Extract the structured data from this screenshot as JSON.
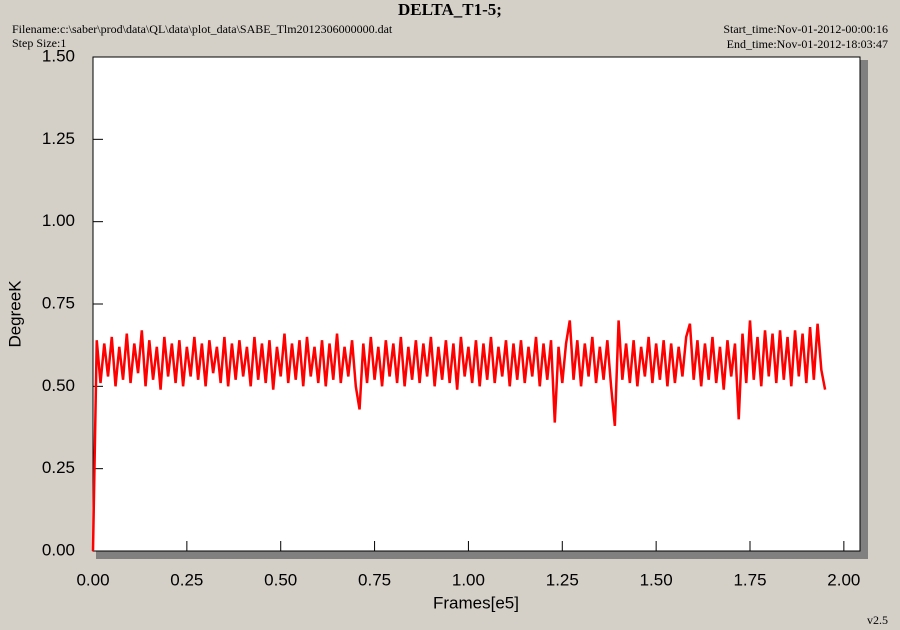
{
  "chart_data": {
    "type": "line",
    "title": "DELTA_T1-5;",
    "filename": "Filename:c:\\saber\\prod\\data\\QL\\data\\plot_data\\SABE_Tlm2012306000000.dat",
    "step_size": "Step Size:1",
    "start_time": "Start_time:Nov-01-2012-00:00:16",
    "end_time": "End_time:Nov-01-2012-18:03:47",
    "version": "v2.5",
    "xlabel": "Frames[e5]",
    "ylabel": "DegreeK",
    "xlim": [
      0,
      2.043
    ],
    "ylim": [
      0,
      1.5
    ],
    "xticks": [
      {
        "value": 0,
        "label": "0.00"
      },
      0.25,
      {
        "value": 0.5,
        "label": "0.50"
      },
      0.75,
      {
        "value": 1,
        "label": "1.00"
      },
      1.25,
      {
        "value": 1.5,
        "label": "1.50"
      },
      1.75,
      {
        "value": 2,
        "label": "2.00"
      }
    ],
    "yticks": [
      {
        "value": 0,
        "label": "0.00"
      },
      0.25,
      {
        "value": 0.5,
        "label": "0.50"
      },
      0.75,
      {
        "value": 1,
        "label": "1.00"
      },
      1.25,
      {
        "value": 1.5,
        "label": "1.50"
      }
    ],
    "x": [
      0.0,
      0.01,
      0.02,
      0.03,
      0.04,
      0.05,
      0.06,
      0.07,
      0.08,
      0.09,
      0.1,
      0.11,
      0.12,
      0.13,
      0.14,
      0.15,
      0.16,
      0.17,
      0.18,
      0.19,
      0.2,
      0.21,
      0.22,
      0.23,
      0.24,
      0.25,
      0.26,
      0.27,
      0.28,
      0.29,
      0.3,
      0.31,
      0.32,
      0.33,
      0.34,
      0.35,
      0.36,
      0.37,
      0.38,
      0.39,
      0.4,
      0.41,
      0.42,
      0.43,
      0.44,
      0.45,
      0.46,
      0.47,
      0.48,
      0.49,
      0.5,
      0.51,
      0.52,
      0.53,
      0.54,
      0.55,
      0.56,
      0.57,
      0.58,
      0.59,
      0.6,
      0.61,
      0.62,
      0.63,
      0.64,
      0.65,
      0.66,
      0.67,
      0.68,
      0.69,
      0.7,
      0.71,
      0.72,
      0.73,
      0.74,
      0.75,
      0.76,
      0.77,
      0.78,
      0.79,
      0.8,
      0.81,
      0.82,
      0.83,
      0.84,
      0.85,
      0.86,
      0.87,
      0.88,
      0.89,
      0.9,
      0.91,
      0.92,
      0.93,
      0.94,
      0.95,
      0.96,
      0.97,
      0.98,
      0.99,
      1.0,
      1.01,
      1.02,
      1.03,
      1.04,
      1.05,
      1.06,
      1.07,
      1.08,
      1.09,
      1.1,
      1.11,
      1.12,
      1.13,
      1.14,
      1.15,
      1.16,
      1.17,
      1.18,
      1.19,
      1.2,
      1.21,
      1.22,
      1.23,
      1.24,
      1.25,
      1.26,
      1.27,
      1.28,
      1.29,
      1.3,
      1.31,
      1.32,
      1.33,
      1.34,
      1.35,
      1.36,
      1.37,
      1.38,
      1.39,
      1.4,
      1.41,
      1.42,
      1.43,
      1.44,
      1.45,
      1.46,
      1.47,
      1.48,
      1.49,
      1.5,
      1.51,
      1.52,
      1.53,
      1.54,
      1.55,
      1.56,
      1.57,
      1.58,
      1.59,
      1.6,
      1.61,
      1.62,
      1.63,
      1.64,
      1.65,
      1.66,
      1.67,
      1.68,
      1.69,
      1.7,
      1.71,
      1.72,
      1.73,
      1.74,
      1.75,
      1.76,
      1.77,
      1.78,
      1.79,
      1.8,
      1.81,
      1.82,
      1.83,
      1.84,
      1.85,
      1.86,
      1.87,
      1.88,
      1.89,
      1.9,
      1.91,
      1.92,
      1.93,
      1.94,
      1.95
    ],
    "series": [
      {
        "color": "#ff0000",
        "values": [
          0,
          0.64,
          0.51,
          0.63,
          0.53,
          0.65,
          0.5,
          0.62,
          0.52,
          0.66,
          0.51,
          0.63,
          0.54,
          0.67,
          0.5,
          0.64,
          0.52,
          0.62,
          0.49,
          0.65,
          0.53,
          0.63,
          0.51,
          0.64,
          0.5,
          0.62,
          0.53,
          0.65,
          0.52,
          0.63,
          0.5,
          0.64,
          0.54,
          0.62,
          0.51,
          0.65,
          0.5,
          0.63,
          0.52,
          0.64,
          0.53,
          0.62,
          0.5,
          0.65,
          0.52,
          0.63,
          0.51,
          0.64,
          0.49,
          0.62,
          0.53,
          0.66,
          0.51,
          0.63,
          0.52,
          0.64,
          0.5,
          0.65,
          0.53,
          0.62,
          0.51,
          0.64,
          0.5,
          0.63,
          0.52,
          0.66,
          0.51,
          0.62,
          0.53,
          0.64,
          0.5,
          0.43,
          0.63,
          0.51,
          0.65,
          0.52,
          0.62,
          0.5,
          0.64,
          0.53,
          0.63,
          0.51,
          0.65,
          0.5,
          0.62,
          0.52,
          0.64,
          0.51,
          0.63,
          0.53,
          0.65,
          0.5,
          0.62,
          0.52,
          0.64,
          0.51,
          0.63,
          0.49,
          0.65,
          0.53,
          0.62,
          0.51,
          0.64,
          0.5,
          0.63,
          0.52,
          0.65,
          0.51,
          0.62,
          0.53,
          0.64,
          0.5,
          0.63,
          0.52,
          0.64,
          0.51,
          0.62,
          0.53,
          0.65,
          0.5,
          0.63,
          0.52,
          0.64,
          0.39,
          0.62,
          0.51,
          0.63,
          0.7,
          0.52,
          0.64,
          0.5,
          0.63,
          0.53,
          0.65,
          0.51,
          0.62,
          0.52,
          0.64,
          0.5,
          0.38,
          0.7,
          0.52,
          0.63,
          0.51,
          0.64,
          0.5,
          0.62,
          0.53,
          0.65,
          0.51,
          0.63,
          0.52,
          0.64,
          0.5,
          0.63,
          0.51,
          0.62,
          0.53,
          0.65,
          0.69,
          0.52,
          0.64,
          0.5,
          0.63,
          0.52,
          0.65,
          0.51,
          0.62,
          0.49,
          0.64,
          0.53,
          0.63,
          0.4,
          0.66,
          0.51,
          0.7,
          0.52,
          0.65,
          0.5,
          0.67,
          0.53,
          0.66,
          0.51,
          0.67,
          0.52,
          0.65,
          0.5,
          0.67,
          0.53,
          0.66,
          0.51,
          0.68,
          0.52,
          0.69,
          0.55,
          0.49
        ]
      }
    ]
  }
}
